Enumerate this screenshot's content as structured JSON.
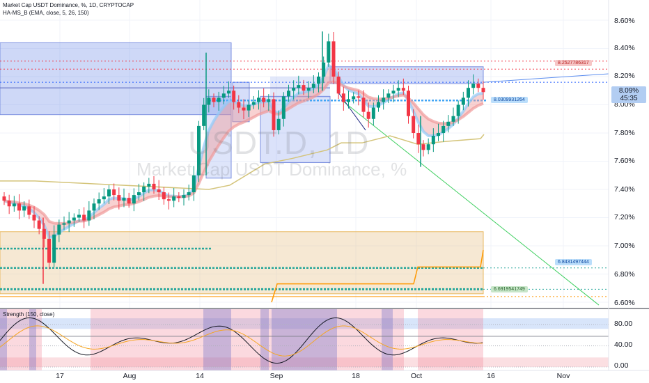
{
  "header": {
    "title": "Market Cap USDT Dominance, %, 1D, CRYPTOCAP",
    "indicator": "HA-MS_B (EMA, close, 5, 26, 150)",
    "oscillator": "Strength (150, close)"
  },
  "watermark": {
    "symbol": "USDT.D, 1D",
    "name": "Market Cap USDT Dominance, %"
  },
  "price_axis": {
    "ticks": [
      "8.60%",
      "8.40%",
      "8.20%",
      "8.00%",
      "7.80%",
      "7.60%",
      "7.40%",
      "7.20%",
      "7.00%",
      "6.80%",
      "6.60%"
    ]
  },
  "osc_axis": {
    "ticks": [
      "80.00",
      "40.00",
      "0.00"
    ]
  },
  "time_axis": {
    "labels": [
      "17",
      "Aug",
      "14",
      "Sep",
      "18",
      "Oct",
      "16",
      "Nov"
    ]
  },
  "current": {
    "price": "8.09%",
    "countdown": "45:35"
  },
  "levels": [
    {
      "label": "8.2527786317",
      "value": 8.2528,
      "color": "#f6c6c6",
      "text": "#b71c1c"
    },
    {
      "label": "8.0309931264",
      "value": 8.031,
      "color": "#bbdefb",
      "text": "#0d47a1"
    },
    {
      "label": "6.8431497444",
      "value": 6.843,
      "color": "#bbdefb",
      "text": "#0d47a1"
    },
    {
      "label": "6.6919541749",
      "value": 6.692,
      "color": "#c8e6c9",
      "text": "#1b5e20"
    }
  ],
  "colors": {
    "up": "#089981",
    "down": "#f23645",
    "ema_fast": "#90caf9",
    "ema_slow": "#ef9a9a",
    "trend": "#d4c47a"
  },
  "chart_data": {
    "type": "candlestick",
    "y_unit": "%",
    "ylim": [
      6.55,
      8.66
    ],
    "x_labels": [
      "17",
      "Aug",
      "14",
      "Sep",
      "18",
      "Oct",
      "16",
      "Nov"
    ],
    "close_series": [
      7.32,
      7.28,
      7.3,
      7.25,
      7.28,
      7.22,
      7.18,
      7.12,
      7.05,
      6.88,
      7.08,
      7.15,
      7.16,
      7.18,
      7.2,
      7.22,
      7.18,
      7.25,
      7.3,
      7.33,
      7.35,
      7.4,
      7.36,
      7.32,
      7.34,
      7.3,
      7.36,
      7.38,
      7.42,
      7.44,
      7.4,
      7.38,
      7.33,
      7.32,
      7.35,
      7.34,
      7.36,
      7.38,
      7.5,
      7.85,
      8.0,
      8.05,
      8.02,
      8.05,
      8.08,
      8.1,
      8.02,
      7.98,
      7.96,
      8.0,
      8.02,
      8.05,
      8.02,
      8.04,
      7.82,
      7.9,
      8.06,
      8.1,
      8.12,
      8.14,
      8.1,
      8.12,
      8.15,
      8.2,
      8.3,
      8.45,
      8.2,
      8.08,
      8.02,
      8.04,
      8.06,
      8.05,
      7.95,
      7.9,
      7.98,
      8.02,
      8.05,
      8.08,
      8.1,
      8.12,
      8.1,
      7.92,
      7.8,
      7.72,
      7.68,
      7.72,
      7.78,
      7.8,
      7.85,
      7.88,
      7.92,
      8.0,
      8.05,
      8.12,
      8.15,
      8.12,
      8.09
    ],
    "osc_ylim": [
      0,
      100
    ],
    "osc_ticks": [
      80,
      40,
      0
    ]
  }
}
